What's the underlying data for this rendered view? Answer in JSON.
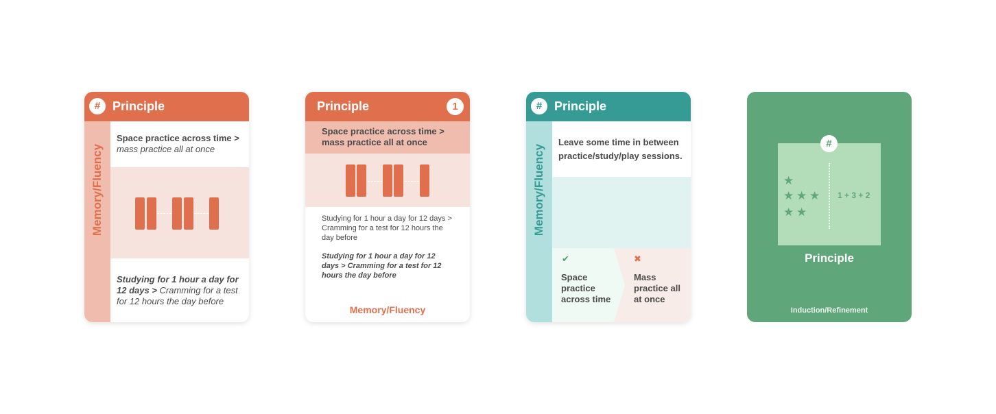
{
  "cards": [
    {
      "header": "Principle",
      "badge": "#",
      "side_label": "Memory/Fluency",
      "text1_bold": "Space practice across time >",
      "text1_rest": "mass practice all at once",
      "text2_bold": "Studying for 1 hour a day for 12 days >",
      "text2_rest": "Cramming for a test for 12 hours the day before"
    },
    {
      "header": "Principle",
      "badge": "1",
      "band_text": "Space practice across time > mass practice all at once",
      "text1": "Studying for 1 hour a day for 12 days > Cramming for a test for 12 hours the day before",
      "text2": "Studying for 1 hour a day for 12 days > Cramming for a test for 12 hours the day before",
      "footer": "Memory/Fluency"
    },
    {
      "header": "Principle",
      "badge": "#",
      "side_label": "Memory/Fluency",
      "text": "Leave some time in between practice/study/play sessions.",
      "check_icon": "✔",
      "cross_icon": "✖",
      "left_text": "Space practice across time",
      "right_text": "Mass practice all at once"
    },
    {
      "badge": "#",
      "star_icon": "★",
      "equation": "1 + 3 + 2",
      "title": "Principle",
      "footer": "Induction/Refinement"
    }
  ],
  "colors": {
    "orange": "#e0704d",
    "orange_light": "#f0bcae",
    "orange_pale": "#f7e3de",
    "teal": "#369b95",
    "teal_light": "#b1dfdd",
    "green": "#5fa77b",
    "green_light": "#b3dcb8"
  }
}
